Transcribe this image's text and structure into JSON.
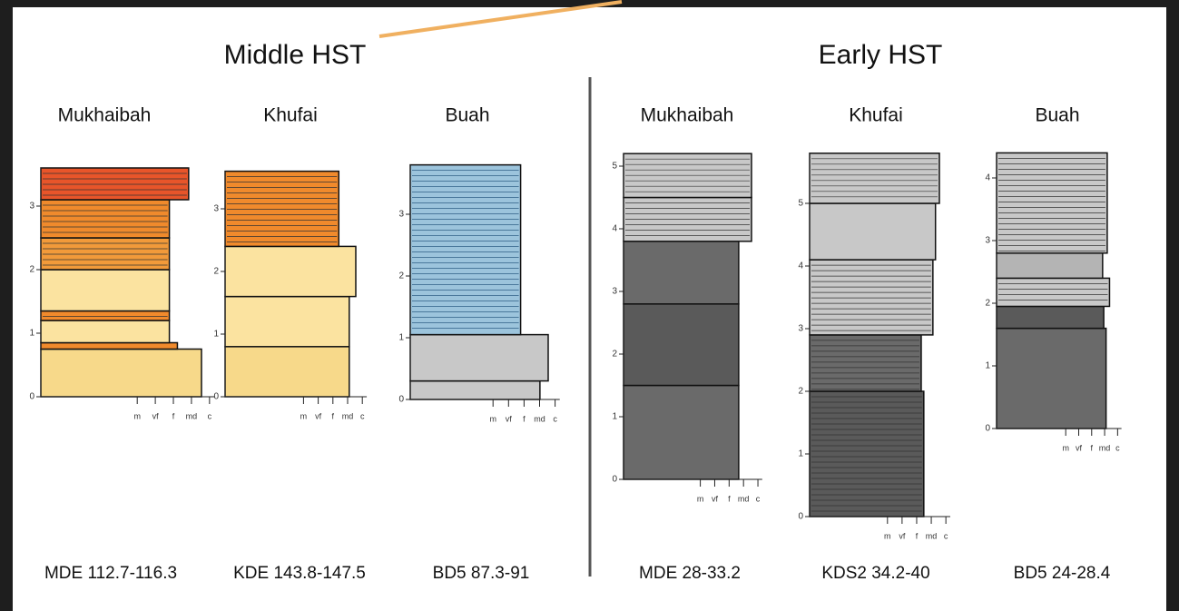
{
  "grain_scale": [
    "m",
    "vf",
    "f",
    "md",
    "c"
  ],
  "groups": [
    {
      "title": "Middle HST",
      "columns": [
        {
          "name": "Mukhaibah",
          "ticks": [
            0,
            1,
            2,
            3
          ],
          "core": "MDE 112.7-116.3"
        },
        {
          "name": "Khufai",
          "ticks": [
            0,
            1,
            2,
            3
          ],
          "core": "KDE 143.8-147.5"
        },
        {
          "name": "Buah",
          "ticks": [
            0,
            1,
            2,
            3
          ],
          "core": "BD5 87.3-91"
        }
      ]
    },
    {
      "title": "Early HST",
      "columns": [
        {
          "name": "Mukhaibah",
          "ticks": [
            0,
            1,
            2,
            3,
            4,
            5
          ],
          "core": "MDE 28-33.2"
        },
        {
          "name": "Khufai",
          "ticks": [
            0,
            1,
            2,
            3,
            4,
            5
          ],
          "core": "KDS2 34.2-40"
        },
        {
          "name": "Buah",
          "ticks": [
            0,
            1,
            2,
            3,
            4
          ],
          "core": "BD5 24-28.4"
        }
      ]
    }
  ]
}
